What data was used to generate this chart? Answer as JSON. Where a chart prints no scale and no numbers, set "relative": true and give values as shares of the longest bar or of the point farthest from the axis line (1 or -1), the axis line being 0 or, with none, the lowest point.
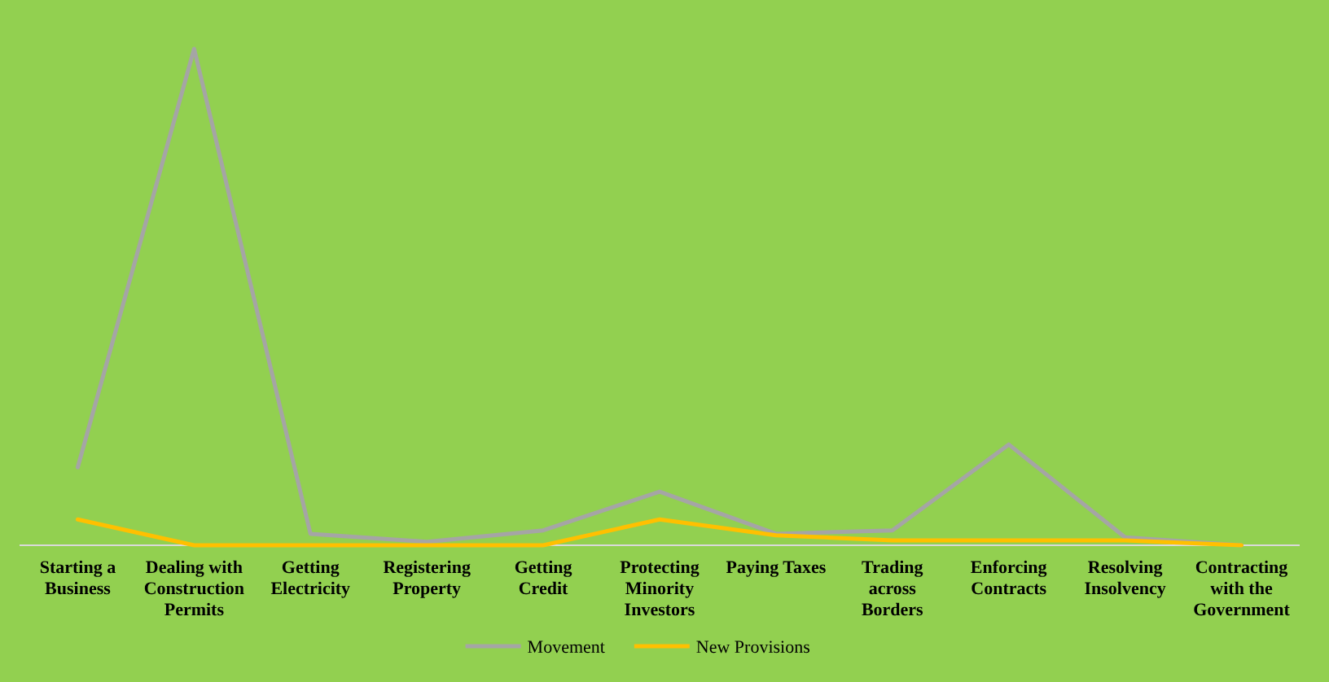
{
  "chart_data": {
    "type": "line",
    "relative": true,
    "categories": [
      "Starting a Business",
      "Dealing with Construction Permits",
      "Getting Electricity",
      "Registering Property",
      "Getting Credit",
      "Protecting Minority Investors",
      "Paying Taxes",
      "Trading across Borders",
      "Enforcing Contracts",
      "Resolving Insolvency",
      "Contracting with the Government"
    ],
    "series": [
      {
        "name": "Movement",
        "color": "#a5a5a5",
        "values": [
          0.157,
          1,
          0.023,
          0.007,
          0.03,
          0.108,
          0.023,
          0.03,
          0.203,
          0.016,
          0
        ]
      },
      {
        "name": "New Provisions",
        "color": "#ffc000",
        "values": [
          0.052,
          0,
          0,
          0,
          0,
          0.052,
          0.02,
          0.01,
          0.01,
          0.01,
          0
        ]
      }
    ],
    "legend": "bottom",
    "marker": "none",
    "line_style": "solid"
  }
}
